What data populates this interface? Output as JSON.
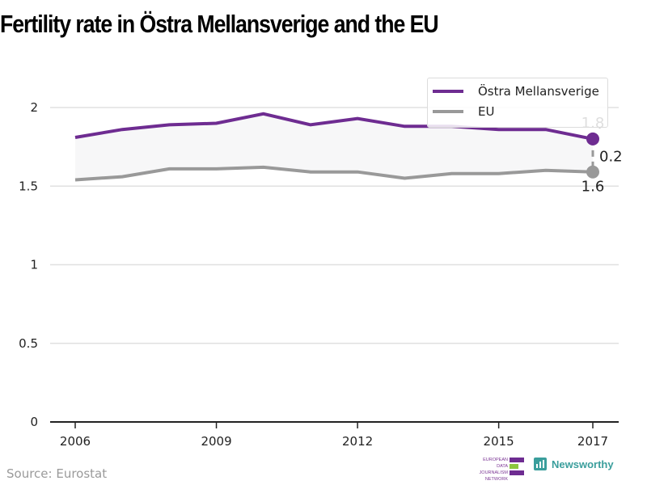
{
  "title": "Fertility rate in Östra Mellansverige and the EU",
  "source": "Source: Eurostat",
  "logos": {
    "edjnet_lines": [
      "EUROPEAN",
      "DATA JOURNALISM",
      "NETWORK"
    ],
    "newsworthy": "Newsworthy"
  },
  "colors": {
    "primary": "#6e2c91",
    "secondary": "#999999",
    "band": "#f7f7f8",
    "edjnet_green": "#8cc63f"
  },
  "chart_data": {
    "type": "line",
    "title": "Fertility rate in Östra Mellansverige and the EU",
    "xlabel": "",
    "ylabel": "",
    "x": [
      2006,
      2007,
      2008,
      2009,
      2010,
      2011,
      2012,
      2013,
      2014,
      2015,
      2016,
      2017
    ],
    "x_ticks": [
      "2006",
      "2009",
      "2012",
      "2015",
      "2017"
    ],
    "y_ticks": [
      "0",
      "0.5",
      "1",
      "1.5",
      "2"
    ],
    "ylim": [
      0,
      2.2
    ],
    "grid": true,
    "legend_position": "top-right",
    "series": [
      {
        "name": "Östra Mellansverige",
        "values": [
          1.81,
          1.86,
          1.89,
          1.9,
          1.96,
          1.89,
          1.93,
          1.88,
          1.88,
          1.86,
          1.86,
          1.8
        ]
      },
      {
        "name": "EU",
        "values": [
          1.54,
          1.56,
          1.61,
          1.61,
          1.62,
          1.59,
          1.59,
          1.55,
          1.58,
          1.58,
          1.6,
          1.59
        ]
      }
    ],
    "annotations": {
      "last_primary_label": "1.8",
      "last_secondary_label": "1.6",
      "difference_label": "0.2"
    }
  }
}
